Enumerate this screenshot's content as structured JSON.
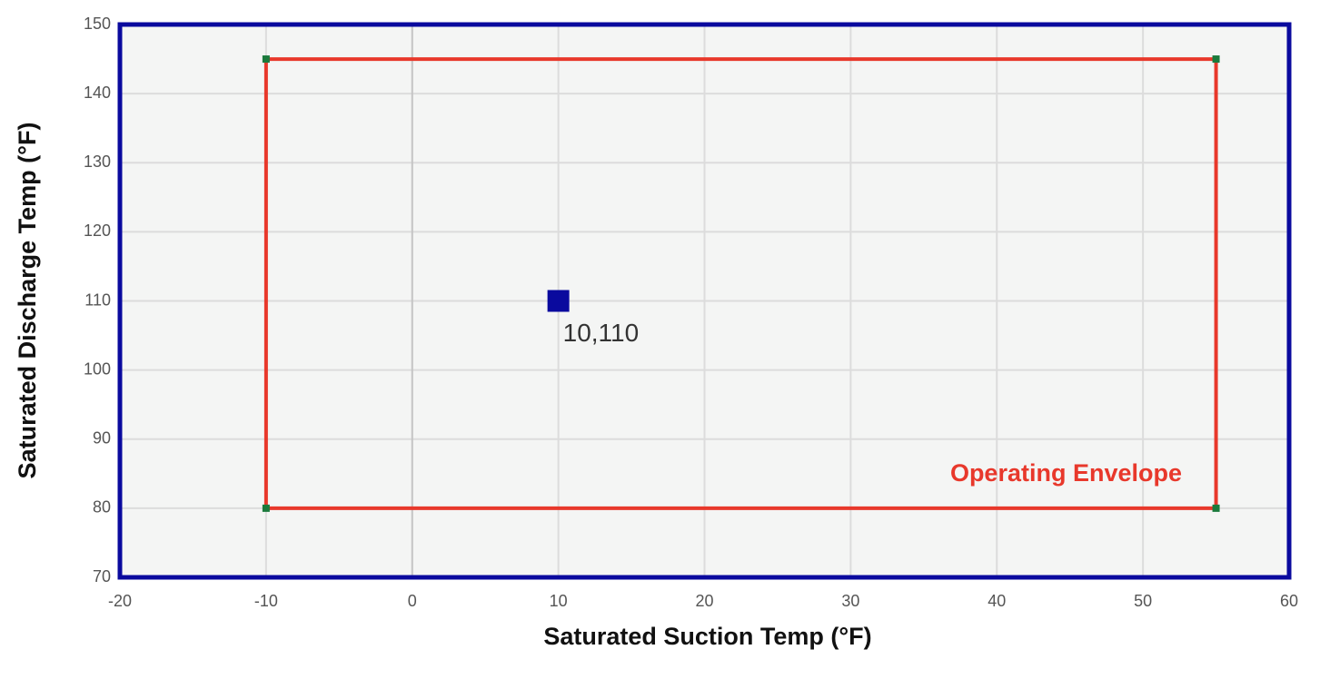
{
  "chart_data": {
    "type": "scatter",
    "x_label": "Saturated Suction Temp (°F)",
    "y_label": "Saturated Discharge Temp (°F)",
    "xlim": [
      -20,
      60
    ],
    "xticks": [
      -20,
      -10,
      0,
      10,
      20,
      30,
      40,
      50,
      60
    ],
    "ylim": [
      70,
      150
    ],
    "yticks": [
      70,
      80,
      90,
      100,
      110,
      120,
      130,
      140,
      150
    ],
    "grid": true,
    "background": "#f4f5f4",
    "frame_color": "#0a0a9e",
    "series": [
      {
        "name": "Operating Envelope",
        "color": "#e8382b",
        "marker_color": "#1a7a3c",
        "closed": true,
        "x": [
          -10,
          -10,
          55,
          55
        ],
        "values": [
          80,
          145,
          145,
          80
        ]
      },
      {
        "color": "#0a0a9e",
        "x": [
          10
        ],
        "values": [
          110
        ],
        "value_labels": [
          "10,110"
        ]
      }
    ]
  }
}
